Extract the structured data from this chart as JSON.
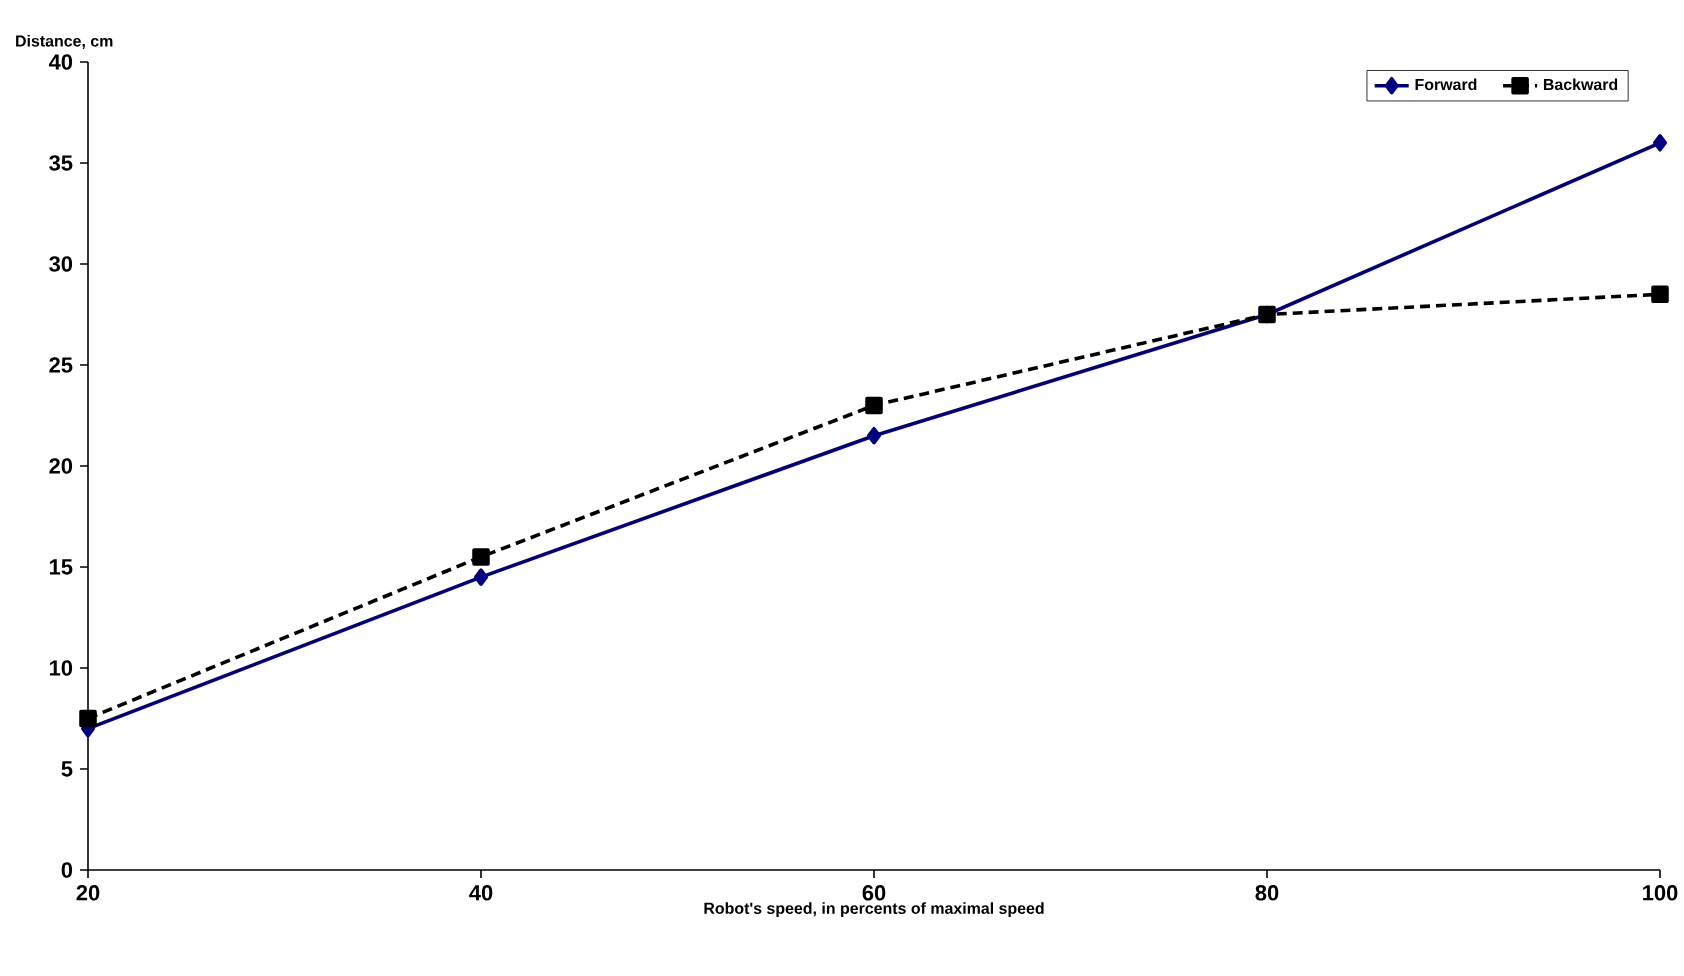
{
  "chart_data": {
    "type": "line",
    "xlabel": "Robot's speed, in percents of maximal speed",
    "ylabel": "Distance, cm",
    "x": [
      20,
      40,
      60,
      80,
      100
    ],
    "series": [
      {
        "name": "Forward",
        "color": "#000080",
        "marker": "diamond",
        "line_style": "solid",
        "values": [
          7,
          14.5,
          21.5,
          27.5,
          36
        ]
      },
      {
        "name": "Backward",
        "color": "#000000",
        "marker": "square",
        "line_style": "dashed",
        "values": [
          7.5,
          15.5,
          23,
          27.5,
          28.5
        ]
      }
    ],
    "xlim": [
      20,
      100
    ],
    "xticks": [
      20,
      40,
      60,
      80,
      100
    ],
    "ylim": [
      0,
      40
    ],
    "yticks": [
      0,
      5,
      10,
      15,
      20,
      25,
      30,
      35,
      40
    ],
    "grid": false,
    "legend": "top right"
  }
}
